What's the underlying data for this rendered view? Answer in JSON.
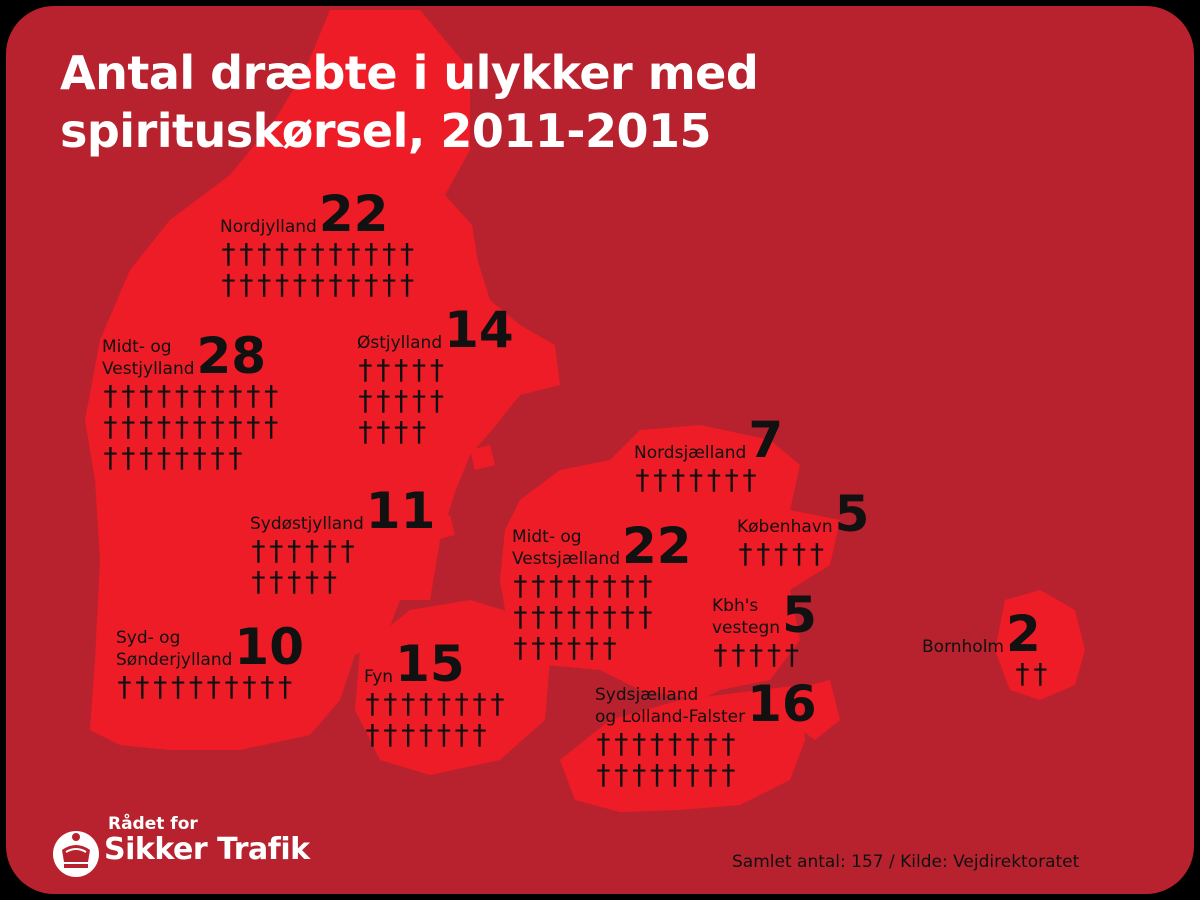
{
  "title": {
    "line1": "Antal dræbte i ulykker med",
    "line2": "spirituskørsel, 2011-2015"
  },
  "colors": {
    "background": "#b8222e",
    "land": "#ee1c26",
    "text": "#111111",
    "title": "#ffffff"
  },
  "regions": [
    {
      "id": "nordjylland",
      "label_lines": [
        "Nordjylland"
      ],
      "value": 22,
      "crosses_per_row": 11
    },
    {
      "id": "midt-vestjylland",
      "label_lines": [
        "Midt- og",
        "Vestjylland"
      ],
      "value": 28,
      "crosses_per_row": 10
    },
    {
      "id": "ostjylland",
      "label_lines": [
        "Østjylland"
      ],
      "value": 14,
      "crosses_per_row": 5
    },
    {
      "id": "nordsjaelland",
      "label_lines": [
        "Nordsjælland"
      ],
      "value": 7,
      "crosses_per_row": 7
    },
    {
      "id": "sydostjylland",
      "label_lines": [
        "Sydøstjylland"
      ],
      "value": 11,
      "crosses_per_row": 6
    },
    {
      "id": "kobenhavn",
      "label_lines": [
        "København"
      ],
      "value": 5,
      "crosses_per_row": 5
    },
    {
      "id": "midt-vestsjaelland",
      "label_lines": [
        "Midt- og",
        "Vestsjælland"
      ],
      "value": 22,
      "crosses_per_row": 8
    },
    {
      "id": "kbh-vestegn",
      "label_lines": [
        "Kbh's",
        "vestegn"
      ],
      "value": 5,
      "crosses_per_row": 5
    },
    {
      "id": "bornholm",
      "label_lines": [
        "Bornholm"
      ],
      "value": 2,
      "crosses_per_row": 2
    },
    {
      "id": "syd-sonderjylland",
      "label_lines": [
        "Syd- og",
        "Sønderjylland"
      ],
      "value": 10,
      "crosses_per_row": 10
    },
    {
      "id": "fyn",
      "label_lines": [
        "Fyn"
      ],
      "value": 15,
      "crosses_per_row": 8
    },
    {
      "id": "sydsjaelland-lolland-falster",
      "label_lines": [
        "Sydsjælland",
        "og Lolland-Falster"
      ],
      "value": 16,
      "crosses_per_row": 8
    }
  ],
  "icon": "cross-icon",
  "icon_glyph": "†",
  "logo": {
    "line1": "Rådet for",
    "line2": "Sikker Trafik",
    "icon": "crown-icon"
  },
  "footer": "Samlet antal: 157 / Kilde: Vejdirektoratet"
}
